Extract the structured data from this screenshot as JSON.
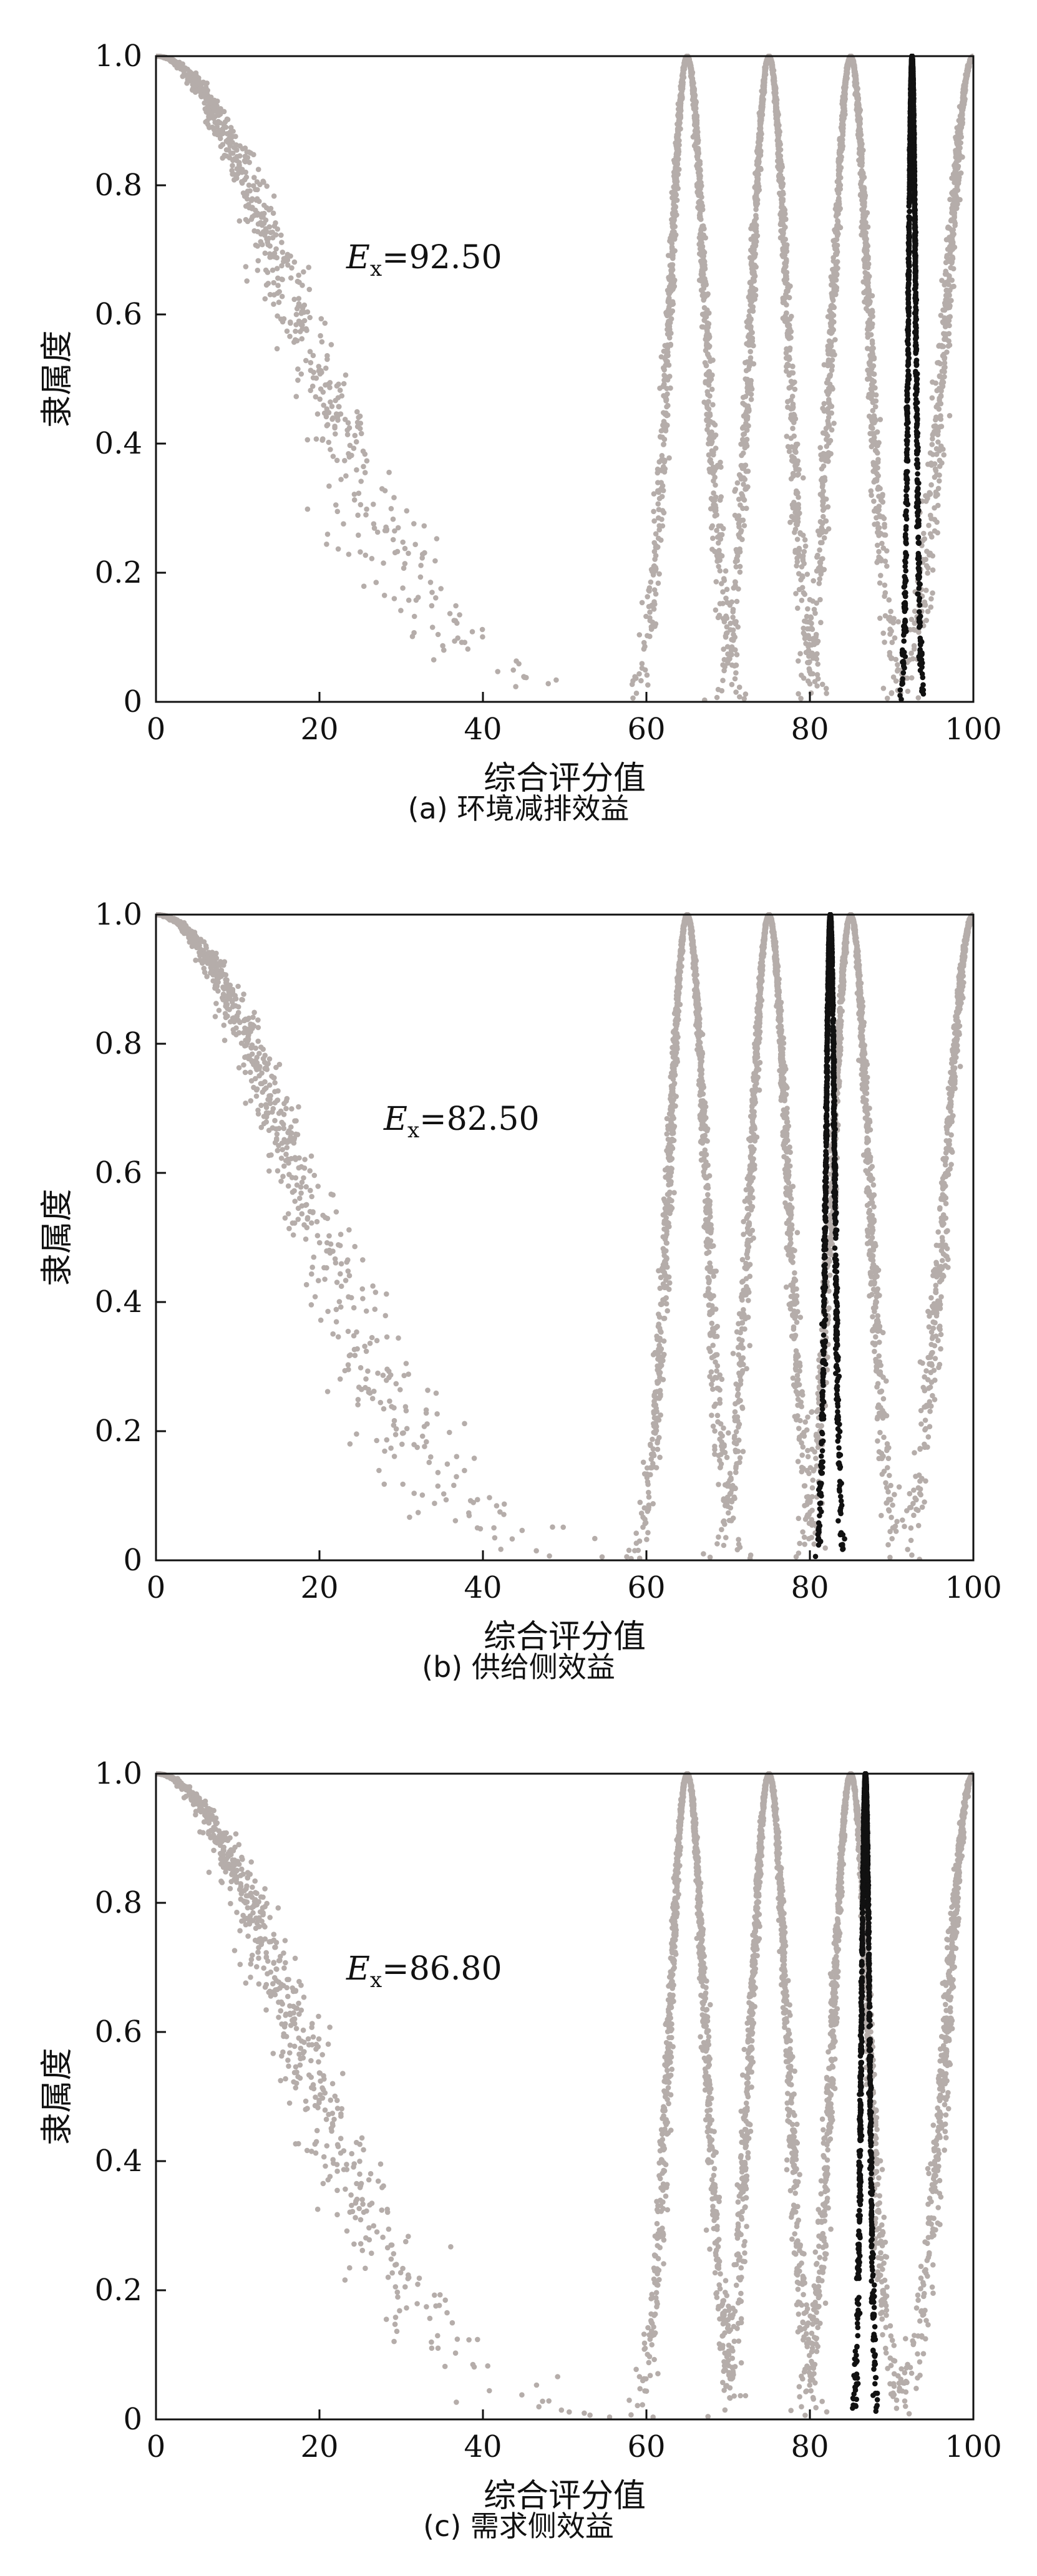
{
  "chart_data": [
    {
      "type": "scatter",
      "caption": "(a) 环境减排效益",
      "xlabel": "综合评分值",
      "ylabel": "隶属度",
      "xlim": [
        0,
        100
      ],
      "ylim": [
        0,
        1
      ],
      "xticks": [
        "0",
        "20",
        "40",
        "60",
        "80",
        "100"
      ],
      "yticks": [
        "0",
        "0.2",
        "0.4",
        "0.6",
        "0.8",
        "1.0"
      ],
      "annotation": {
        "var": "E",
        "sub": "x",
        "text": "=92.50"
      },
      "grid": false,
      "reference_clouds": [
        {
          "ex": 0,
          "en": 17.0
        },
        {
          "ex": 65,
          "en": 2.2
        },
        {
          "ex": 75,
          "en": 2.2
        },
        {
          "ex": 85,
          "en": 2.2
        },
        {
          "ex": 100,
          "en": 3.3
        }
      ],
      "result_cloud": {
        "ex": 92.5,
        "en": 0.45
      },
      "colors": {
        "reference": "#b5adaa",
        "result": "#111111"
      }
    },
    {
      "type": "scatter",
      "caption": "(b) 供给侧效益",
      "xlabel": "综合评分值",
      "ylabel": "隶属度",
      "xlim": [
        0,
        100
      ],
      "ylim": [
        0,
        1
      ],
      "xticks": [
        "0",
        "20",
        "40",
        "60",
        "80",
        "100"
      ],
      "yticks": [
        "0",
        "0.2",
        "0.4",
        "0.6",
        "0.8",
        "1.0"
      ],
      "annotation": {
        "var": "E",
        "sub": "x",
        "text": "=82.50"
      },
      "grid": false,
      "reference_clouds": [
        {
          "ex": 0,
          "en": 17.0
        },
        {
          "ex": 65,
          "en": 2.2
        },
        {
          "ex": 75,
          "en": 2.2
        },
        {
          "ex": 85,
          "en": 2.2
        },
        {
          "ex": 100,
          "en": 3.3
        }
      ],
      "result_cloud": {
        "ex": 82.5,
        "en": 0.55
      },
      "colors": {
        "reference": "#b5adaa",
        "result": "#111111"
      }
    },
    {
      "type": "scatter",
      "caption": "(c) 需求侧效益",
      "xlabel": "综合评分值",
      "ylabel": "隶属度",
      "xlim": [
        0,
        100
      ],
      "ylim": [
        0,
        1
      ],
      "xticks": [
        "0",
        "20",
        "40",
        "60",
        "80",
        "100"
      ],
      "yticks": [
        "0",
        "0.2",
        "0.4",
        "0.6",
        "0.8",
        "1.0"
      ],
      "annotation": {
        "var": "E",
        "sub": "x",
        "text": "=86.80"
      },
      "grid": false,
      "reference_clouds": [
        {
          "ex": 0,
          "en": 17.0
        },
        {
          "ex": 65,
          "en": 2.2
        },
        {
          "ex": 75,
          "en": 2.2
        },
        {
          "ex": 85,
          "en": 2.2
        },
        {
          "ex": 100,
          "en": 3.3
        }
      ],
      "result_cloud": {
        "ex": 86.8,
        "en": 0.5
      },
      "colors": {
        "reference": "#b5adaa",
        "result": "#111111"
      }
    }
  ]
}
